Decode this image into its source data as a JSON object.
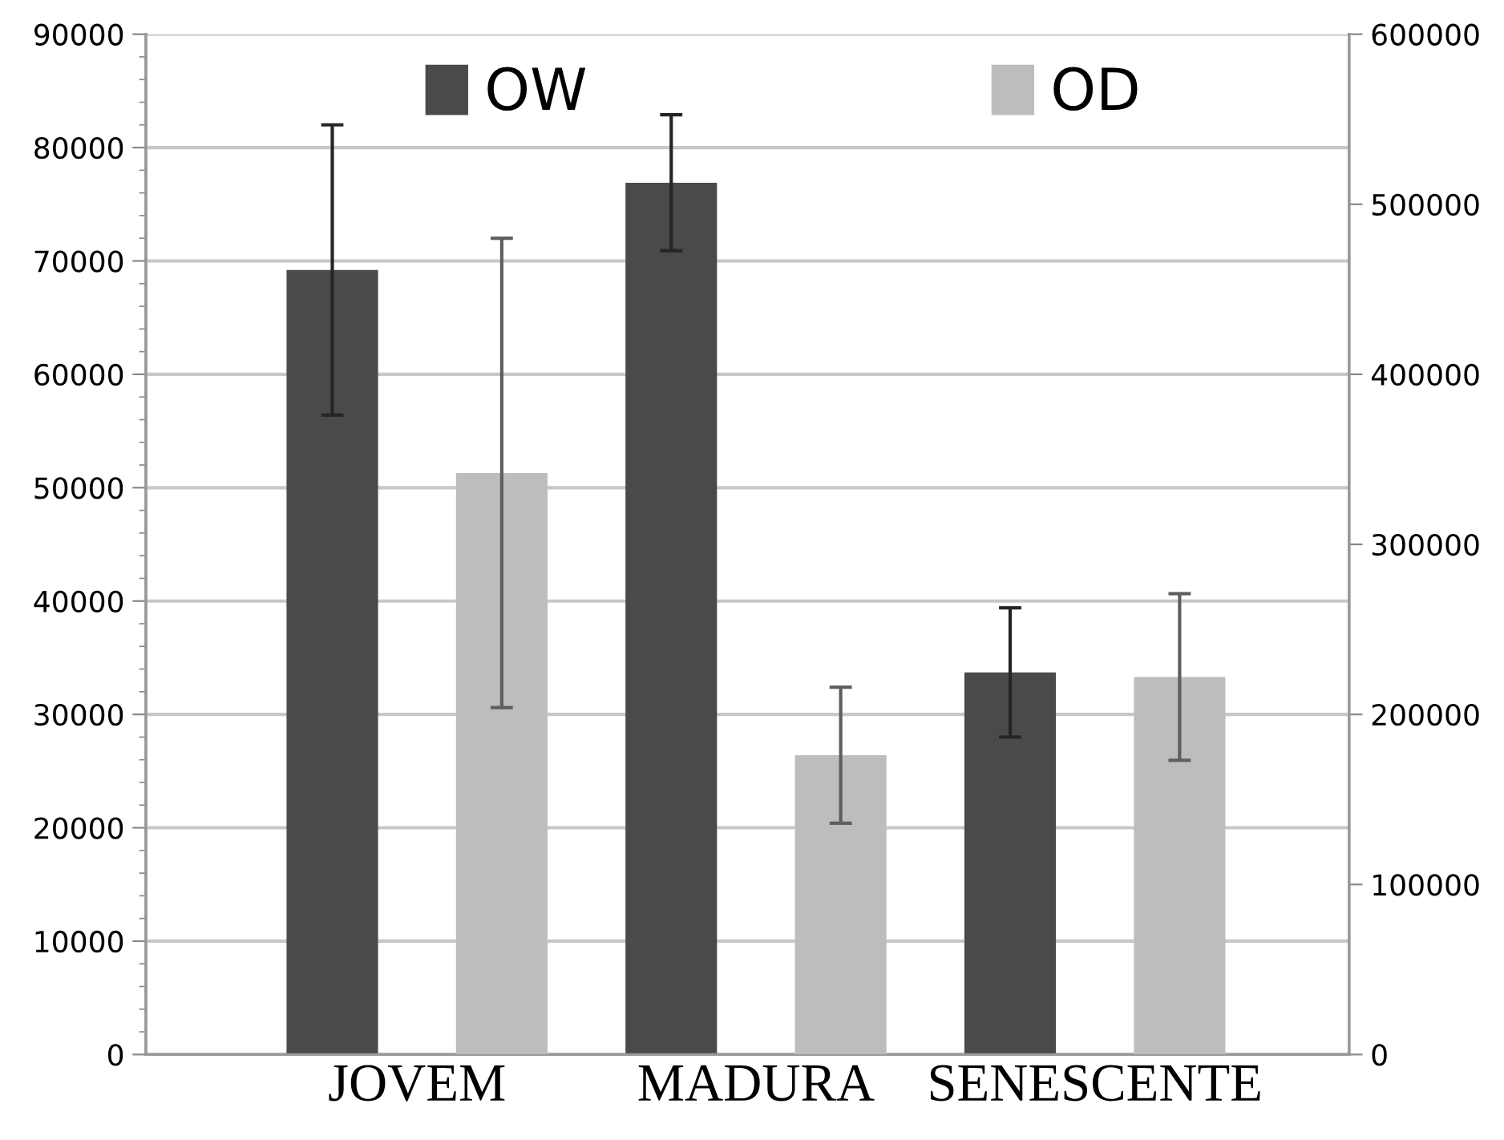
{
  "chart_data": {
    "type": "bar",
    "categories": [
      "JOVEM",
      "MADURA",
      "SENESCENTE"
    ],
    "series": [
      {
        "name": "OW",
        "color": "#4a4a4a",
        "values": [
          69200,
          76900,
          33700
        ],
        "errors": [
          12800,
          6000,
          5700
        ]
      },
      {
        "name": "OD",
        "color": "#bdbdbd",
        "values": [
          342000,
          176000,
          222000
        ],
        "errors": [
          138000,
          40000,
          49000
        ],
        "axis": "y2"
      }
    ],
    "ylim": [
      0,
      90000
    ],
    "yticks": [
      0,
      10000,
      20000,
      30000,
      40000,
      50000,
      60000,
      70000,
      80000,
      90000
    ],
    "y2lim": [
      0,
      600000
    ],
    "y2ticks": [
      0,
      100000,
      200000,
      300000,
      400000,
      500000,
      600000
    ],
    "grid": "y",
    "legend": "top"
  }
}
